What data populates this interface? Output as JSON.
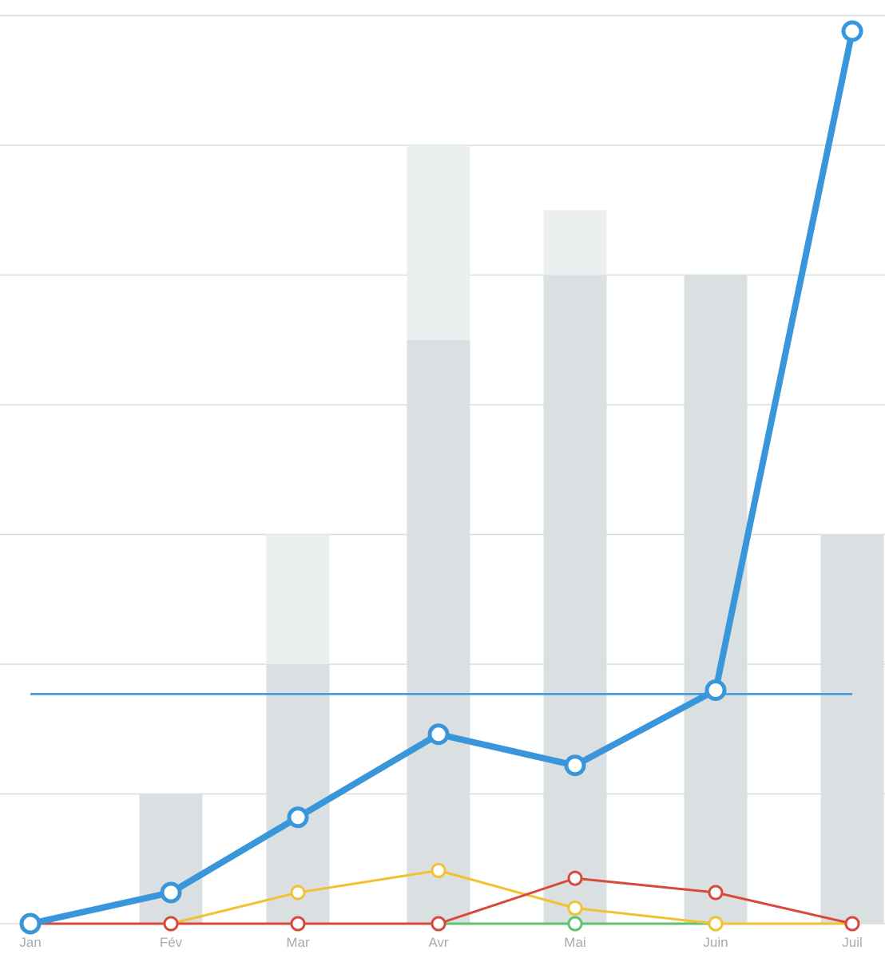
{
  "chart_data": {
    "type": "line",
    "categories": [
      "Jan",
      "Fév",
      "Mar",
      "Avr",
      "Mai",
      "Juin",
      "Juil"
    ],
    "ylim": [
      0,
      7
    ],
    "grid": true,
    "bars": {
      "base": [
        0,
        1,
        2,
        4.5,
        5,
        5,
        3
      ],
      "extra": [
        0,
        0,
        1,
        1.5,
        0.5,
        0,
        0
      ]
    },
    "series": [
      {
        "values": [
          0,
          0.24,
          0.82,
          1.46,
          1.22,
          1.8,
          6.88
        ],
        "color": "#3a96da"
      },
      {
        "values": [
          0,
          0,
          0.24,
          0.41,
          0.12,
          0,
          0
        ],
        "color": "#f0c230"
      },
      {
        "values": [
          0,
          0,
          0,
          0,
          0.35,
          0.24,
          0
        ],
        "color": "#d9493a"
      },
      {
        "values": [
          0,
          0,
          0,
          0,
          0,
          0,
          0
        ],
        "color": "#5cc36f"
      }
    ],
    "reference_line": {
      "value": 1.77,
      "color": "#3a96da"
    },
    "colors": {
      "bar_base": "#dae0e1",
      "bar_extra": "#ebeff0",
      "grid": "#d9dcde",
      "tick_label": "#a6abb0"
    }
  }
}
